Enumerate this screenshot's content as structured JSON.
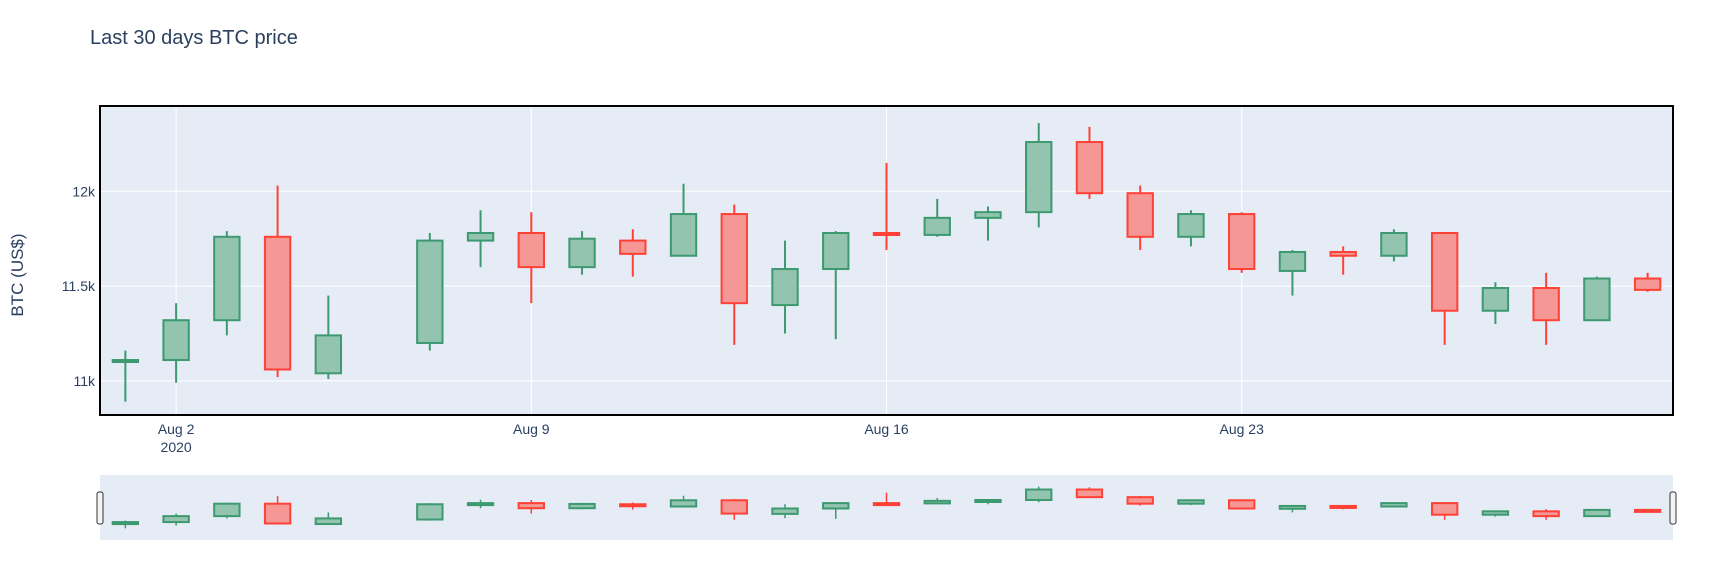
{
  "chart_data": {
    "type": "candlestick",
    "title": "Last 30 days BTC price",
    "ylabel": "BTC (US$)",
    "xlabel": "",
    "ylim": [
      10820,
      12450
    ],
    "x_range_days": [
      -0.5,
      30.5
    ],
    "y_ticks": [
      {
        "value": 11000,
        "label": "11k"
      },
      {
        "value": 11500,
        "label": "11.5k"
      },
      {
        "value": 12000,
        "label": "12k"
      }
    ],
    "x_ticks": [
      {
        "day": 1,
        "label": "Aug 2",
        "sublabel": "2020"
      },
      {
        "day": 8,
        "label": "Aug 9",
        "sublabel": ""
      },
      {
        "day": 15,
        "label": "Aug 16",
        "sublabel": ""
      },
      {
        "day": 22,
        "label": "Aug 23",
        "sublabel": ""
      }
    ],
    "increasing_color": "#3d9970",
    "increasing_fill": "#93c4b0",
    "decreasing_color": "#ff4136",
    "decreasing_fill": "#f59794",
    "plot_bg": "#e5ecf6",
    "series": [
      {
        "date": "2020-08-01",
        "day": 0,
        "open": 11100,
        "high": 11160,
        "low": 10890,
        "close": 11110
      },
      {
        "date": "2020-08-02",
        "day": 1,
        "open": 11110,
        "high": 11410,
        "low": 10990,
        "close": 11320
      },
      {
        "date": "2020-08-03",
        "day": 2,
        "open": 11320,
        "high": 11790,
        "low": 11240,
        "close": 11760
      },
      {
        "date": "2020-08-04",
        "day": 3,
        "open": 11760,
        "high": 12030,
        "low": 11020,
        "close": 11060
      },
      {
        "date": "2020-08-05",
        "day": 4,
        "open": 11040,
        "high": 11450,
        "low": 11010,
        "close": 11240
      },
      {
        "date": "2020-08-07",
        "day": 6,
        "open": 11200,
        "high": 11780,
        "low": 11160,
        "close": 11740
      },
      {
        "date": "2020-08-08",
        "day": 7,
        "open": 11740,
        "high": 11900,
        "low": 11600,
        "close": 11780
      },
      {
        "date": "2020-08-09",
        "day": 8,
        "open": 11780,
        "high": 11890,
        "low": 11410,
        "close": 11600
      },
      {
        "date": "2020-08-10",
        "day": 9,
        "open": 11600,
        "high": 11790,
        "low": 11560,
        "close": 11750
      },
      {
        "date": "2020-08-11",
        "day": 10,
        "open": 11740,
        "high": 11800,
        "low": 11550,
        "close": 11670
      },
      {
        "date": "2020-08-12",
        "day": 11,
        "open": 11660,
        "high": 12040,
        "low": 11660,
        "close": 11880
      },
      {
        "date": "2020-08-13",
        "day": 12,
        "open": 11880,
        "high": 11930,
        "low": 11190,
        "close": 11410
      },
      {
        "date": "2020-08-14",
        "day": 13,
        "open": 11400,
        "high": 11740,
        "low": 11250,
        "close": 11590
      },
      {
        "date": "2020-08-15",
        "day": 14,
        "open": 11590,
        "high": 11790,
        "low": 11220,
        "close": 11780
      },
      {
        "date": "2020-08-16",
        "day": 15,
        "open": 11780,
        "high": 12150,
        "low": 11690,
        "close": 11770
      },
      {
        "date": "2020-08-17",
        "day": 16,
        "open": 11770,
        "high": 11960,
        "low": 11760,
        "close": 11860
      },
      {
        "date": "2020-08-18",
        "day": 17,
        "open": 11860,
        "high": 11920,
        "low": 11740,
        "close": 11890
      },
      {
        "date": "2020-08-19",
        "day": 18,
        "open": 11890,
        "high": 12360,
        "low": 11810,
        "close": 12260
      },
      {
        "date": "2020-08-20",
        "day": 19,
        "open": 12260,
        "high": 12340,
        "low": 11960,
        "close": 11990
      },
      {
        "date": "2020-08-21",
        "day": 20,
        "open": 11990,
        "high": 12030,
        "low": 11690,
        "close": 11760
      },
      {
        "date": "2020-08-22",
        "day": 21,
        "open": 11760,
        "high": 11900,
        "low": 11710,
        "close": 11880
      },
      {
        "date": "2020-08-23",
        "day": 22,
        "open": 11880,
        "high": 11890,
        "low": 11570,
        "close": 11590
      },
      {
        "date": "2020-08-24",
        "day": 23,
        "open": 11580,
        "high": 11690,
        "low": 11450,
        "close": 11680
      },
      {
        "date": "2020-08-25",
        "day": 24,
        "open": 11680,
        "high": 11710,
        "low": 11560,
        "close": 11660
      },
      {
        "date": "2020-08-26",
        "day": 25,
        "open": 11660,
        "high": 11800,
        "low": 11630,
        "close": 11780
      },
      {
        "date": "2020-08-27",
        "day": 26,
        "open": 11780,
        "high": 11780,
        "low": 11190,
        "close": 11370
      },
      {
        "date": "2020-08-28",
        "day": 27,
        "open": 11370,
        "high": 11520,
        "low": 11300,
        "close": 11490
      },
      {
        "date": "2020-08-29",
        "day": 28,
        "open": 11490,
        "high": 11570,
        "low": 11190,
        "close": 11320
      },
      {
        "date": "2020-08-30",
        "day": 29,
        "open": 11320,
        "high": 11550,
        "low": 11320,
        "close": 11540
      },
      {
        "date": "2020-08-31",
        "day": 30,
        "open": 11540,
        "high": 11570,
        "low": 11470,
        "close": 11480
      }
    ]
  }
}
